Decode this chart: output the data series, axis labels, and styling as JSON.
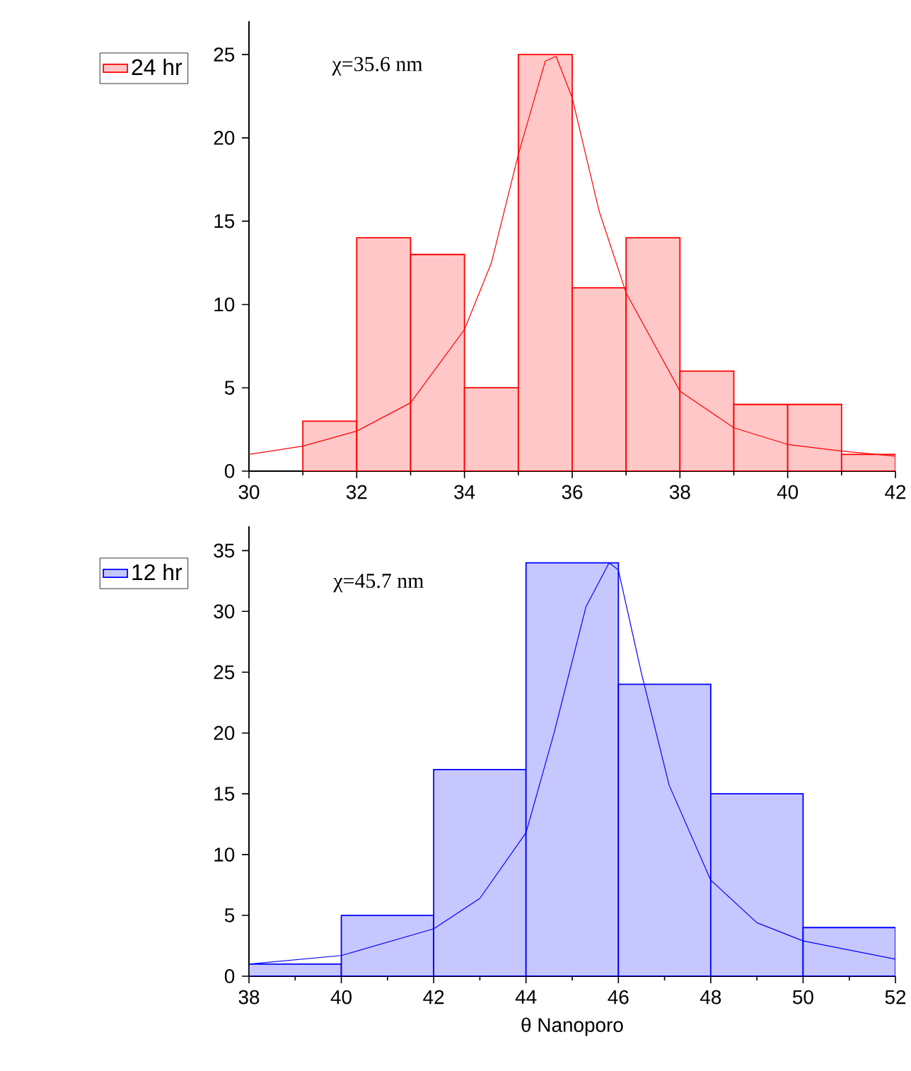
{
  "chart_data": [
    {
      "type": "histogram",
      "bins": [
        31,
        32,
        33,
        34,
        35,
        36,
        37,
        38,
        39,
        40,
        41,
        42
      ],
      "xlim": [
        30,
        42
      ],
      "xticks": [
        30,
        32,
        34,
        36,
        38,
        40,
        42
      ],
      "ylim": [
        0,
        27
      ],
      "yticks": [
        0,
        5,
        10,
        15,
        20,
        25
      ],
      "legend": "top left",
      "annotations": [
        "χ=35.6 nm"
      ],
      "series": [
        {
          "name": "24 hr",
          "color": "#ff0000",
          "values": [
            3,
            14,
            13,
            5,
            25,
            11,
            14,
            6,
            4,
            4,
            1
          ]
        },
        {
          "type": "line",
          "marker": "none",
          "color": "#ff0000",
          "x": [
            30,
            31,
            32,
            33,
            34,
            34.5,
            35,
            35.5,
            35.7,
            36,
            36.5,
            37,
            38,
            39,
            40,
            41,
            42
          ],
          "values": [
            1.0,
            1.5,
            2.4,
            4.1,
            8.5,
            12.5,
            19,
            24.6,
            24.9,
            22.4,
            15.6,
            10.7,
            4.8,
            2.6,
            1.6,
            1.2,
            0.9
          ]
        }
      ]
    },
    {
      "type": "histogram",
      "bins": [
        38,
        40,
        42,
        44,
        46,
        48,
        50,
        52
      ],
      "xlim": [
        38,
        52
      ],
      "xticks": [
        38,
        40,
        42,
        44,
        46,
        48,
        50,
        52
      ],
      "ylim": [
        0,
        37
      ],
      "yticks": [
        0,
        5,
        10,
        15,
        20,
        25,
        30,
        35
      ],
      "legend": "top left",
      "xlabel": "θ Nanoporo",
      "annotations": [
        "χ=45.7 nm"
      ],
      "series": [
        {
          "name": "12 hr",
          "color": "#0000ff",
          "values": [
            1,
            5,
            17,
            34,
            24,
            15,
            4
          ]
        },
        {
          "type": "line",
          "marker": "none",
          "color": "#0000ff",
          "x": [
            38,
            40,
            42,
            43,
            44,
            44.6,
            45.3,
            45.8,
            46,
            46.5,
            47.1,
            48,
            49,
            50,
            52
          ],
          "values": [
            1.0,
            1.7,
            3.9,
            6.4,
            11.8,
            19.9,
            30.4,
            34.0,
            33.4,
            24.9,
            15.7,
            7.9,
            4.4,
            2.9,
            1.4
          ]
        }
      ]
    }
  ]
}
